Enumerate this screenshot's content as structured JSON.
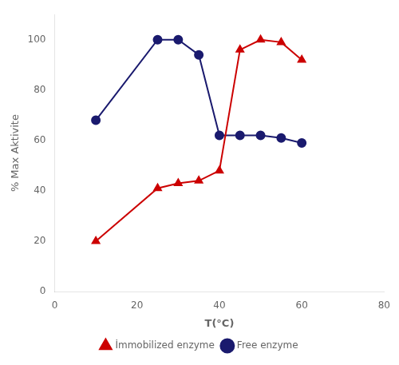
{
  "chart_data": {
    "type": "line",
    "xlabel": "T(°C)",
    "ylabel": "% Max Aktivite",
    "x": [
      10,
      25,
      30,
      35,
      40,
      45,
      50,
      55,
      60
    ],
    "series": [
      {
        "name": "İmmobilized enzyme",
        "color": "#cc0000",
        "marker": "triangle",
        "values": [
          20,
          41,
          43,
          44,
          48,
          96,
          100,
          99,
          92
        ]
      },
      {
        "name": "Free enzyme",
        "color": "#1a1a6e",
        "marker": "circle",
        "values": [
          68,
          100,
          100,
          94,
          62,
          62,
          62,
          61,
          59
        ]
      }
    ],
    "xlim": [
      0,
      80
    ],
    "ylim": [
      0,
      110
    ],
    "xticks": [
      0,
      20,
      40,
      60,
      80
    ],
    "yticks": [
      0,
      20,
      40,
      60,
      80,
      100
    ],
    "grid": false,
    "legend": "bottom"
  }
}
